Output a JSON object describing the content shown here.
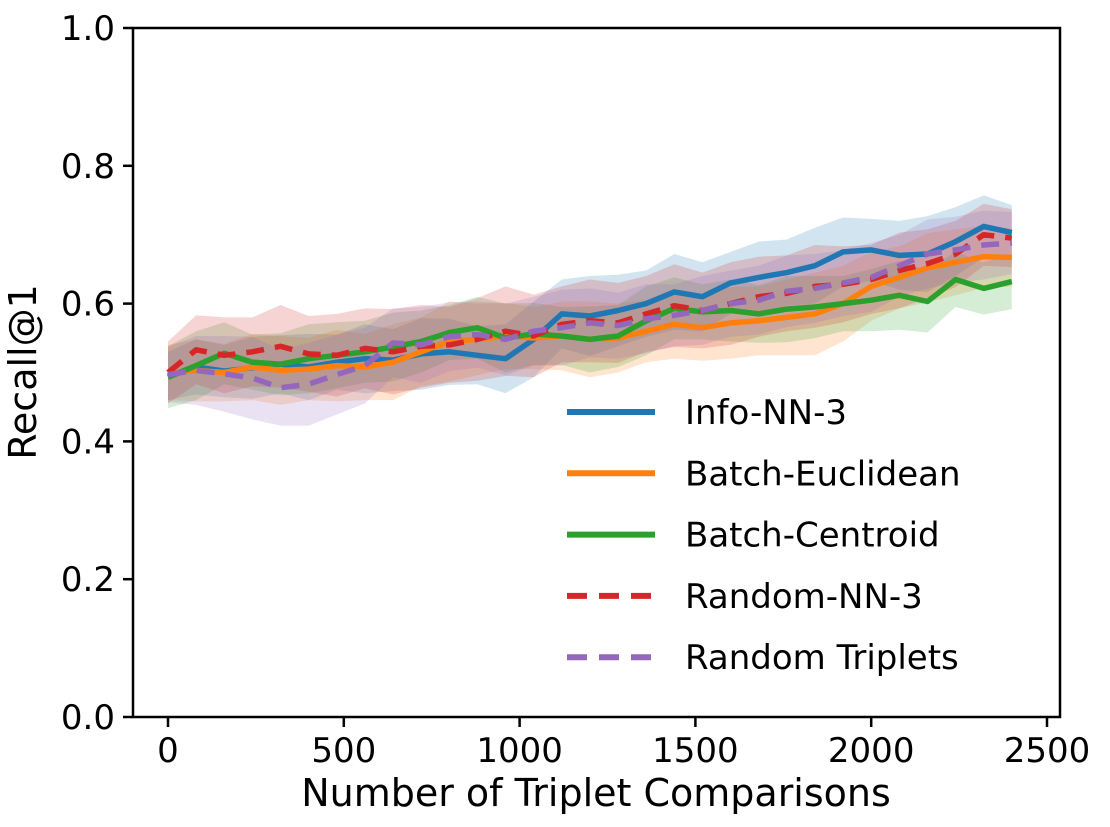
{
  "figure": {
    "background": "#ffffff",
    "spine_color": "#000000"
  },
  "chart_data": {
    "type": "line",
    "title": "",
    "xlabel": "Number of Triplet Comparisons",
    "ylabel": "Recall@1",
    "xlim": [
      0,
      2500
    ],
    "ylim": [
      0.0,
      1.0
    ],
    "grid": false,
    "legend_position": "lower-right-inside",
    "x_ticks": [
      0,
      500,
      1000,
      1500,
      2000,
      2500
    ],
    "y_ticks": [
      "0.0",
      "0.2",
      "0.4",
      "0.6",
      "0.8",
      "1.0"
    ],
    "y_tick_values": [
      0.0,
      0.2,
      0.4,
      0.6,
      0.8,
      1.0
    ],
    "x": [
      0,
      80,
      160,
      240,
      320,
      400,
      480,
      560,
      640,
      720,
      800,
      880,
      960,
      1040,
      1120,
      1200,
      1280,
      1360,
      1440,
      1520,
      1600,
      1680,
      1760,
      1840,
      1920,
      2000,
      2080,
      2160,
      2240,
      2320,
      2400
    ],
    "series": [
      {
        "name": "Info-NN-3",
        "color": "#1f77b4",
        "style": "solid",
        "values": [
          0.495,
          0.508,
          0.502,
          0.507,
          0.512,
          0.508,
          0.515,
          0.52,
          0.518,
          0.527,
          0.53,
          0.525,
          0.52,
          0.548,
          0.585,
          0.582,
          0.59,
          0.6,
          0.617,
          0.61,
          0.63,
          0.638,
          0.645,
          0.655,
          0.675,
          0.678,
          0.67,
          0.672,
          0.69,
          0.712,
          0.703
        ],
        "band": [
          0.035,
          0.04,
          0.038,
          0.045,
          0.042,
          0.048,
          0.04,
          0.05,
          0.045,
          0.052,
          0.048,
          0.042,
          0.05,
          0.055,
          0.05,
          0.058,
          0.052,
          0.048,
          0.055,
          0.05,
          0.045,
          0.052,
          0.048,
          0.055,
          0.05,
          0.045,
          0.05,
          0.055,
          0.05,
          0.045,
          0.04
        ]
      },
      {
        "name": "Batch-Euclidean",
        "color": "#ff7f0e",
        "style": "solid",
        "values": [
          0.5,
          0.503,
          0.5,
          0.508,
          0.503,
          0.505,
          0.51,
          0.508,
          0.515,
          0.53,
          0.545,
          0.548,
          0.553,
          0.55,
          0.553,
          0.548,
          0.55,
          0.56,
          0.57,
          0.565,
          0.572,
          0.575,
          0.58,
          0.585,
          0.6,
          0.625,
          0.638,
          0.652,
          0.66,
          0.668,
          0.667
        ],
        "band": [
          0.04,
          0.045,
          0.042,
          0.048,
          0.05,
          0.045,
          0.052,
          0.048,
          0.055,
          0.05,
          0.058,
          0.052,
          0.048,
          0.045,
          0.05,
          0.055,
          0.05,
          0.045,
          0.05,
          0.048,
          0.052,
          0.05,
          0.055,
          0.06,
          0.055,
          0.05,
          0.045,
          0.05,
          0.048,
          0.045,
          0.042
        ]
      },
      {
        "name": "Batch-Centroid",
        "color": "#2ca02c",
        "style": "solid",
        "values": [
          0.493,
          0.51,
          0.528,
          0.515,
          0.512,
          0.52,
          0.525,
          0.53,
          0.537,
          0.545,
          0.558,
          0.565,
          0.55,
          0.556,
          0.553,
          0.548,
          0.553,
          0.575,
          0.593,
          0.588,
          0.59,
          0.585,
          0.592,
          0.595,
          0.6,
          0.605,
          0.612,
          0.603,
          0.635,
          0.622,
          0.632
        ],
        "band": [
          0.045,
          0.05,
          0.045,
          0.04,
          0.045,
          0.05,
          0.048,
          0.045,
          0.05,
          0.045,
          0.04,
          0.045,
          0.05,
          0.045,
          0.042,
          0.048,
          0.045,
          0.05,
          0.045,
          0.04,
          0.045,
          0.042,
          0.048,
          0.045,
          0.04,
          0.045,
          0.05,
          0.045,
          0.04,
          0.038,
          0.04
        ]
      },
      {
        "name": "Random-NN-3",
        "color": "#d62728",
        "style": "dashed",
        "values": [
          0.5,
          0.533,
          0.525,
          0.53,
          0.538,
          0.527,
          0.525,
          0.535,
          0.53,
          0.538,
          0.54,
          0.548,
          0.56,
          0.553,
          0.57,
          0.575,
          0.572,
          0.585,
          0.597,
          0.59,
          0.6,
          0.61,
          0.615,
          0.625,
          0.628,
          0.635,
          0.648,
          0.658,
          0.672,
          0.7,
          0.695
        ],
        "band": [
          0.045,
          0.05,
          0.055,
          0.05,
          0.06,
          0.055,
          0.06,
          0.058,
          0.062,
          0.06,
          0.055,
          0.06,
          0.065,
          0.06,
          0.055,
          0.06,
          0.058,
          0.055,
          0.06,
          0.055,
          0.06,
          0.058,
          0.055,
          0.06,
          0.055,
          0.05,
          0.055,
          0.05,
          0.048,
          0.045,
          0.042
        ]
      },
      {
        "name": "Random Triplets",
        "color": "#9467bd",
        "style": "dashed",
        "values": [
          0.497,
          0.503,
          0.498,
          0.492,
          0.478,
          0.483,
          0.497,
          0.51,
          0.543,
          0.54,
          0.552,
          0.555,
          0.548,
          0.56,
          0.565,
          0.572,
          0.568,
          0.578,
          0.583,
          0.59,
          0.6,
          0.605,
          0.618,
          0.622,
          0.63,
          0.638,
          0.655,
          0.672,
          0.678,
          0.685,
          0.688
        ],
        "band": [
          0.04,
          0.05,
          0.055,
          0.06,
          0.055,
          0.06,
          0.058,
          0.055,
          0.05,
          0.055,
          0.05,
          0.048,
          0.052,
          0.05,
          0.055,
          0.05,
          0.048,
          0.05,
          0.045,
          0.05,
          0.048,
          0.05,
          0.052,
          0.05,
          0.048,
          0.05,
          0.045,
          0.05,
          0.048,
          0.05,
          0.045
        ]
      }
    ]
  }
}
